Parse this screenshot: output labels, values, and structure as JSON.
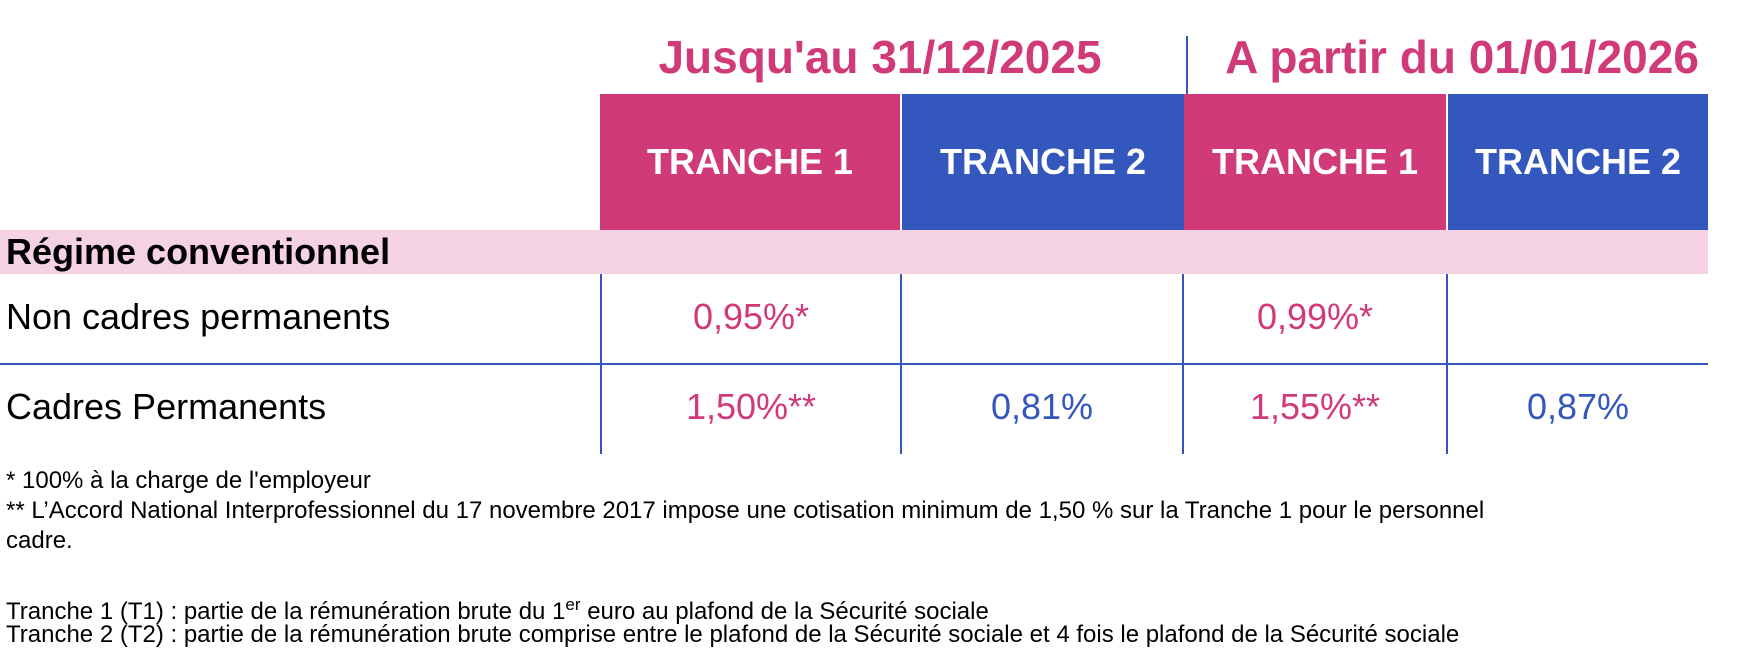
{
  "periods": {
    "until": "Jusqu'au 31/12/2025",
    "from": "A partir du 01/01/2026"
  },
  "columns": [
    "TRANCHE 1",
    "TRANCHE 2",
    "TRANCHE 1",
    "TRANCHE 2"
  ],
  "section": "Régime conventionnel",
  "rows": [
    {
      "label": "Non cadres permanents",
      "values": [
        "0,95%*",
        "",
        "0,99%*",
        ""
      ]
    },
    {
      "label": "Cadres Permanents",
      "values": [
        "1,50%**",
        "0,81%",
        "1,55%**",
        "0,87%"
      ]
    }
  ],
  "notes": {
    "note1": "* 100% à la charge de l'employeur",
    "note2_line1": "** L’Accord National Interprofessionnel du 17 novembre 2017 impose une cotisation minimum de 1,50 % sur la Tranche 1 pour le personnel",
    "note2_line2": "cadre.",
    "t1_prefix": "Tranche 1 (T1) : partie de la rémunération brute du 1",
    "t1_sup": "er",
    "t1_suffix": " euro au plafond de la Sécurité sociale",
    "t2": "Tranche 2 (T2) : partie de la rémunération brute comprise entre le plafond de la Sécurité sociale et 4 fois le plafond de la Sécurité sociale"
  },
  "colors": {
    "pink": "#d13a78",
    "blue": "#3457bd",
    "section_band": "#f4d1e3"
  }
}
